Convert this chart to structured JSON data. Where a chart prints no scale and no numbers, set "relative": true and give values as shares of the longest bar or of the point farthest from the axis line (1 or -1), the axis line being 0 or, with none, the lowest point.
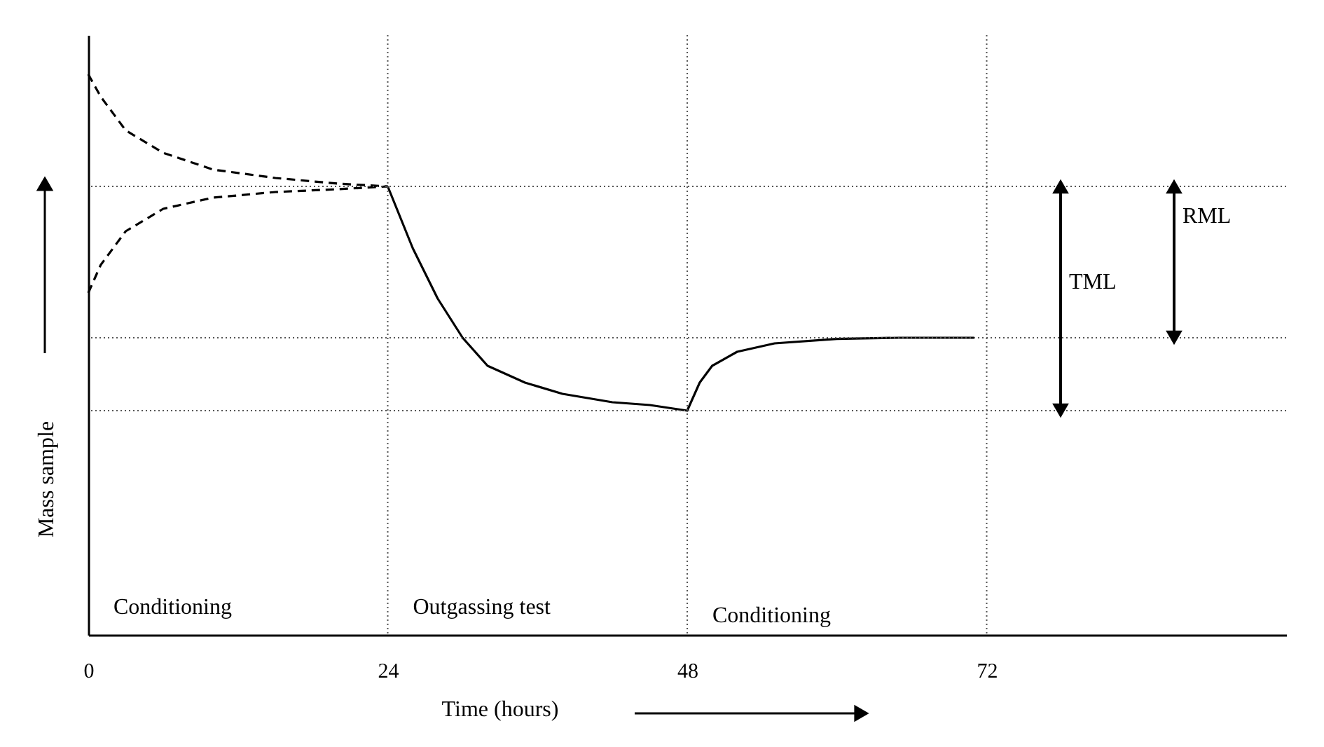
{
  "chart_data": {
    "type": "line",
    "relative": true,
    "xlabel": "Time (hours)",
    "ylabel": "Mass sample",
    "xlim": [
      0,
      96
    ],
    "xticks": [
      0,
      24,
      48,
      72
    ],
    "marker": "none",
    "series": [
      {
        "color": "#000000",
        "line_style": "dashed",
        "x": [
          0,
          1,
          3,
          6,
          10,
          15,
          20,
          24
        ],
        "values": [
          1.0,
          0.96,
          0.9,
          0.86,
          0.83,
          0.815,
          0.805,
          0.8
        ]
      },
      {
        "color": "#000000",
        "line_style": "dashed",
        "x": [
          0,
          1,
          3,
          6,
          10,
          15,
          20,
          24
        ],
        "values": [
          0.61,
          0.66,
          0.72,
          0.76,
          0.78,
          0.79,
          0.795,
          0.8
        ]
      },
      {
        "color": "#000000",
        "line_style": "solid",
        "x": [
          24,
          26,
          28,
          30,
          32,
          35,
          38,
          42,
          45,
          48,
          49,
          50,
          52,
          55,
          60,
          65,
          71
        ],
        "values": [
          0.8,
          0.69,
          0.6,
          0.53,
          0.48,
          0.45,
          0.43,
          0.415,
          0.41,
          0.4,
          0.45,
          0.48,
          0.505,
          0.52,
          0.528,
          0.53,
          0.53
        ]
      }
    ],
    "ref_lines": [
      {
        "axis": "x",
        "value": 24,
        "color": "#555555",
        "line_style": "dotted"
      },
      {
        "axis": "x",
        "value": 48,
        "color": "#555555",
        "line_style": "dotted"
      },
      {
        "axis": "x",
        "value": 72,
        "color": "#555555",
        "line_style": "dotted"
      },
      {
        "axis": "y",
        "value": 0.8,
        "color": "#555555",
        "line_style": "dotted"
      },
      {
        "axis": "y",
        "value": 0.4,
        "color": "#555555",
        "line_style": "dotted"
      },
      {
        "axis": "y",
        "value": 0.53,
        "color": "#555555",
        "line_style": "dotted"
      }
    ],
    "annotations": [
      "TML",
      "RML",
      "Conditioning",
      "Outgassing test",
      "Conditioning"
    ]
  }
}
